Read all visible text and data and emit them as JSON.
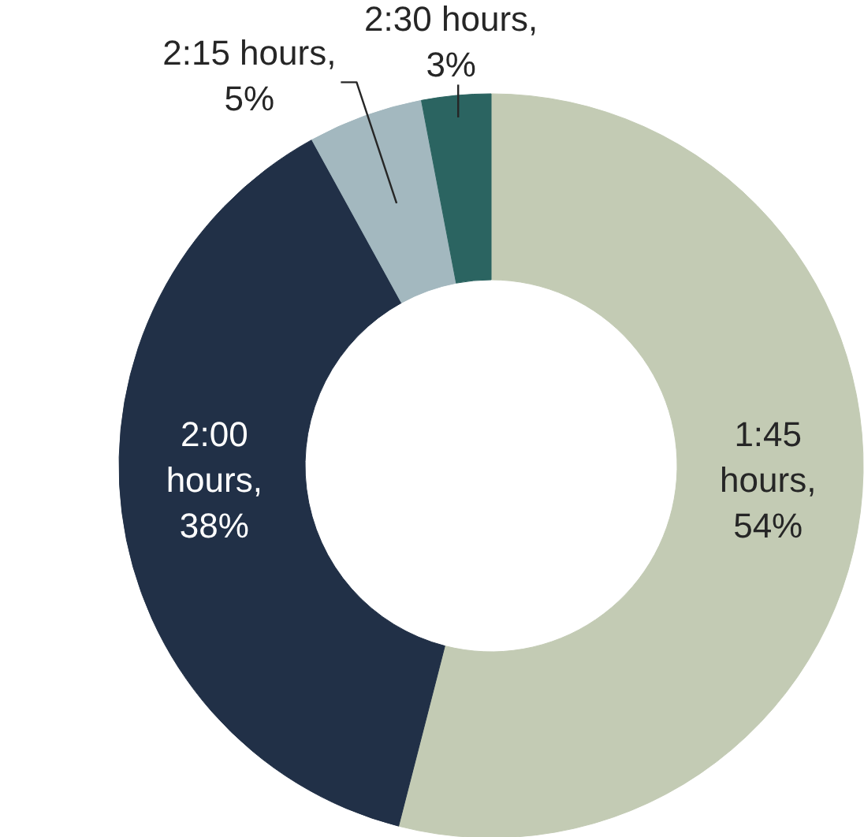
{
  "chart_data": {
    "type": "donut",
    "categories": [
      "1:45 hours, 54%",
      "2:00 hours, 38%",
      "2:15 hours, 5%",
      "2:30 hours, 3%"
    ],
    "values": [
      54,
      38,
      5,
      3
    ],
    "colors": [
      "#c3cbb4",
      "#213047",
      "#a3b8bf",
      "#2b6461"
    ]
  }
}
